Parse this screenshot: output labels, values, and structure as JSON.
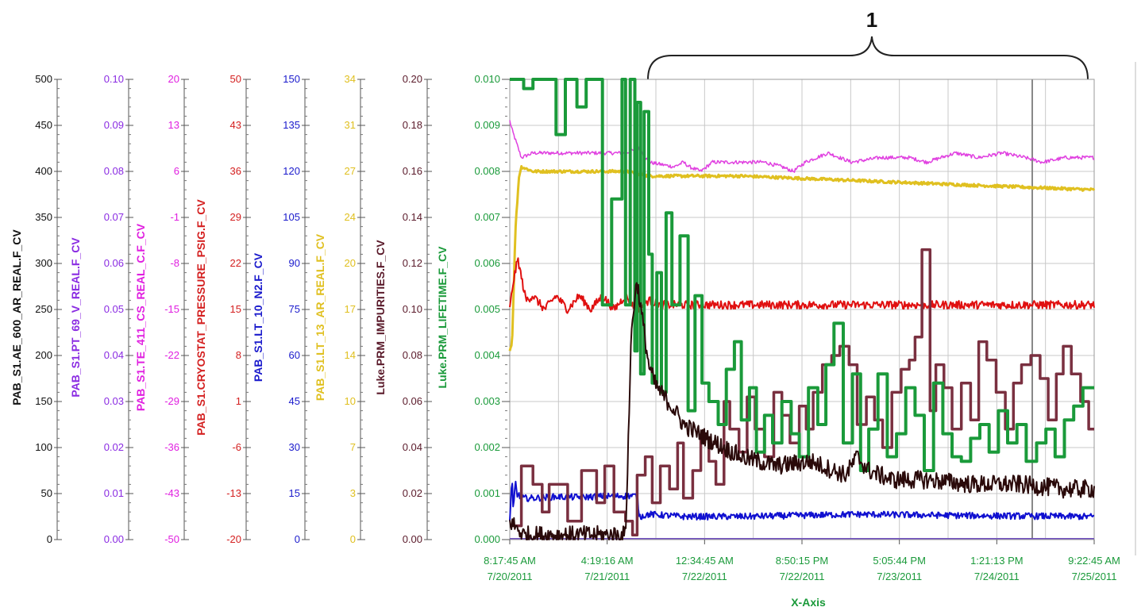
{
  "chart_data": {
    "type": "line",
    "callout_label": "1",
    "xlabel": "X-Axis",
    "x_tick_labels": [
      [
        "8:17:45 AM",
        "7/20/2011"
      ],
      [
        "4:19:16 AM",
        "7/21/2011"
      ],
      [
        "12:34:45 AM",
        "7/22/2011"
      ],
      [
        "8:50:15 PM",
        "7/22/2011"
      ],
      [
        "5:05:44 PM",
        "7/23/2011"
      ],
      [
        "1:21:13 PM",
        "7/24/2011"
      ],
      [
        "9:22:45 AM",
        "7/25/2011"
      ]
    ],
    "x_range_days": [
      0,
      5.0472
    ],
    "grid": true,
    "axes": [
      {
        "title": "PAB_S1.AE_600_AR_REAL.F_CV",
        "color": "#111111",
        "ylim": [
          0,
          500
        ],
        "ticks": [
          "0",
          "50",
          "100",
          "150",
          "200",
          "250",
          "300",
          "350",
          "400",
          "450",
          "500"
        ]
      },
      {
        "title": "PAB_S1.PT_69_V_REAL.F_CV",
        "color": "#8a2be2",
        "ylim": [
          0,
          0.1
        ],
        "ticks": [
          "0.00",
          "0.01",
          "0.02",
          "0.03",
          "0.04",
          "0.05",
          "0.06",
          "0.07",
          "0.08",
          "0.09",
          "0.10"
        ]
      },
      {
        "title": "PAB_S1.TE_411_CS_REAL_C.F_CV",
        "color": "#e020e0",
        "ylim": [
          -50,
          20
        ],
        "ticks": [
          "-50",
          "-43",
          "-36",
          "-29",
          "-22",
          "-15",
          "-8",
          "-1",
          "6",
          "13",
          "20"
        ]
      },
      {
        "title": "PAB_S1.CRYOSTAT_PRESSURE_PSIG.F_CV",
        "color": "#d42020",
        "ylim": [
          -20,
          50
        ],
        "ticks": [
          "-20",
          "-13",
          "-6",
          "1",
          "8",
          "15",
          "22",
          "29",
          "36",
          "43",
          "50"
        ]
      },
      {
        "title": "PAB_S1.LT_10_N2.F_CV",
        "color": "#1a1acc",
        "ylim": [
          0,
          150
        ],
        "ticks": [
          "0",
          "15",
          "30",
          "45",
          "60",
          "75",
          "90",
          "105",
          "120",
          "135",
          "150"
        ]
      },
      {
        "title": "PAB_S1.LT_13_AR_REAL.F_CV",
        "color": "#e0c020",
        "ylim": [
          0,
          34
        ],
        "ticks": [
          "0",
          "3",
          "7",
          "10",
          "14",
          "17",
          "20",
          "24",
          "27",
          "31",
          "34"
        ]
      },
      {
        "title": "Luke.PRM_IMPURITIES.F_CV",
        "color": "#5a1a2a",
        "ylim": [
          0,
          0.2
        ],
        "ticks": [
          "0.00",
          "0.02",
          "0.04",
          "0.06",
          "0.08",
          "0.10",
          "0.12",
          "0.14",
          "0.16",
          "0.18",
          "0.20"
        ]
      },
      {
        "title": "Luke.PRM_LIFETIME.F_CV",
        "color": "#1a9a3a",
        "ylim": [
          0,
          0.01
        ],
        "ticks": [
          "0.000",
          "0.001",
          "0.002",
          "0.003",
          "0.004",
          "0.005",
          "0.006",
          "0.007",
          "0.008",
          "0.009",
          "0.010"
        ]
      }
    ],
    "series": [
      {
        "color": "#e040e0",
        "axis_index": 7,
        "width": 1.5,
        "noise": 4e-05,
        "x": [
          0,
          0.02,
          0.1,
          0.2,
          0.6,
          1.0,
          1.12,
          1.2,
          1.42,
          1.5,
          1.55,
          1.65,
          1.75,
          2.2,
          2.35,
          2.45,
          2.55,
          2.75,
          2.95,
          3.2,
          3.45,
          3.6,
          3.85,
          4.05,
          4.25,
          4.45,
          4.6,
          4.8,
          5.0472
        ],
        "y": [
          0.0091,
          0.0089,
          0.0083,
          0.0084,
          0.0084,
          0.0084,
          0.0085,
          0.0082,
          0.0081,
          0.0082,
          0.0081,
          0.008,
          0.0082,
          0.0082,
          0.0081,
          0.008,
          0.0082,
          0.0084,
          0.0082,
          0.0083,
          0.0083,
          0.0082,
          0.0084,
          0.0083,
          0.0084,
          0.0083,
          0.0082,
          0.0083,
          0.0083
        ]
      },
      {
        "color": "#e0c020",
        "axis_index": 7,
        "width": 3,
        "noise": 3e-05,
        "x": [
          0,
          0.02,
          0.05,
          0.08,
          0.1,
          0.2,
          1.0,
          1.2,
          1.3,
          2.0,
          3.0,
          4.0,
          5.0472
        ],
        "y": [
          0.0041,
          0.0043,
          0.0068,
          0.0079,
          0.0081,
          0.008,
          0.008,
          0.0079,
          0.0079,
          0.0079,
          0.0078,
          0.0077,
          0.0076
        ]
      },
      {
        "color": "#e01010",
        "axis_index": 7,
        "width": 2,
        "noise": 9e-05,
        "x": [
          0,
          0.03,
          0.07,
          0.1,
          0.14,
          0.2,
          0.3,
          0.4,
          0.5,
          0.6,
          0.7,
          0.8,
          0.9,
          1.0,
          1.1,
          1.2,
          1.3,
          2.0,
          3.0,
          4.0,
          5.0472
        ],
        "y": [
          0.005,
          0.0056,
          0.0061,
          0.0057,
          0.0052,
          0.0053,
          0.005,
          0.0053,
          0.005,
          0.0053,
          0.005,
          0.0053,
          0.005,
          0.0053,
          0.005,
          0.0052,
          0.0051,
          0.0051,
          0.0051,
          0.0051,
          0.0051
        ]
      },
      {
        "color": "#1010d0",
        "axis_index": 7,
        "width": 2,
        "noise": 7e-05,
        "x": [
          0,
          0.02,
          0.03,
          0.05,
          0.06,
          0.1,
          0.2,
          0.4,
          0.6,
          0.8,
          1.0,
          1.1,
          1.12,
          1.2,
          1.5,
          2.0,
          3.0,
          4.0,
          5.0472
        ],
        "y": [
          0.0004,
          0.0013,
          0.0006,
          0.0013,
          0.001,
          0.0009,
          0.0009,
          0.00093,
          0.00092,
          0.00094,
          0.00095,
          0.00095,
          0.0005,
          0.00055,
          0.0005,
          0.0005,
          0.00055,
          0.00052,
          0.0005
        ]
      },
      {
        "color": "#7050c0",
        "axis_index": 7,
        "width": 1.5,
        "noise": 0.0,
        "x": [
          0,
          5.0472
        ],
        "y": [
          2e-05,
          2e-05
        ]
      },
      {
        "color": "#7a3040",
        "axis_index": 7,
        "width": 3.5,
        "noise": 0.0,
        "step": true,
        "x": [
          0,
          0.1,
          0.2,
          0.28,
          0.34,
          0.5,
          0.62,
          0.75,
          0.82,
          0.9,
          1.0,
          1.06,
          1.1,
          1.17,
          1.23,
          1.3,
          1.38,
          1.45,
          1.5,
          1.58,
          1.65,
          1.72,
          1.78,
          1.85,
          1.9,
          1.98,
          2.05,
          2.12,
          2.2,
          2.28,
          2.35,
          2.42,
          2.5,
          2.56,
          2.62,
          2.7,
          2.78,
          2.85,
          2.93,
          3.0,
          3.08,
          3.15,
          3.22,
          3.3,
          3.38,
          3.45,
          3.5,
          3.56,
          3.63,
          3.68,
          3.75,
          3.82,
          3.9,
          3.98,
          4.05,
          4.12,
          4.2,
          4.28,
          4.35,
          4.42,
          4.5,
          4.58,
          4.65,
          4.72,
          4.78,
          4.85,
          4.93,
          5.0,
          5.0472
        ],
        "y": [
          0.0003,
          0.0016,
          0.0012,
          0.0006,
          0.0012,
          0.0004,
          0.0015,
          0.0008,
          0.0016,
          0.0006,
          0.0004,
          0.0001,
          0.0014,
          0.0018,
          0.0008,
          0.0016,
          0.0011,
          0.0021,
          0.0009,
          0.0015,
          0.0022,
          0.0017,
          0.0012,
          0.003,
          0.0024,
          0.0019,
          0.0031,
          0.0024,
          0.0018,
          0.0032,
          0.0027,
          0.0021,
          0.0029,
          0.0024,
          0.0032,
          0.0038,
          0.004,
          0.0042,
          0.0038,
          0.0025,
          0.0031,
          0.0026,
          0.002,
          0.0032,
          0.0037,
          0.0039,
          0.0044,
          0.0063,
          0.0028,
          0.0038,
          0.0033,
          0.0024,
          0.0034,
          0.0026,
          0.0043,
          0.0039,
          0.0032,
          0.0024,
          0.0034,
          0.0038,
          0.004,
          0.0035,
          0.0026,
          0.0036,
          0.0042,
          0.0036,
          0.003,
          0.0024,
          0.0024
        ]
      },
      {
        "color": "#1a9a3a",
        "axis_index": 7,
        "width": 4,
        "noise": 0.0,
        "step": true,
        "x": [
          0,
          0.12,
          0.2,
          0.4,
          0.48,
          0.58,
          0.66,
          0.8,
          0.88,
          0.97,
          1.0,
          1.04,
          1.08,
          1.1,
          1.13,
          1.16,
          1.2,
          1.23,
          1.27,
          1.31,
          1.35,
          1.4,
          1.47,
          1.54,
          1.6,
          1.66,
          1.72,
          1.8,
          1.87,
          1.94,
          2.0,
          2.07,
          2.13,
          2.2,
          2.27,
          2.35,
          2.43,
          2.5,
          2.58,
          2.66,
          2.73,
          2.8,
          2.88,
          2.96,
          3.03,
          3.1,
          3.18,
          3.26,
          3.34,
          3.42,
          3.5,
          3.58,
          3.66,
          3.74,
          3.82,
          3.9,
          3.98,
          4.06,
          4.14,
          4.22,
          4.3,
          4.38,
          4.46,
          4.55,
          4.63,
          4.71,
          4.79,
          4.87,
          4.95,
          5.0472
        ],
        "y": [
          0.01,
          0.0098,
          0.01,
          0.0088,
          0.01,
          0.0094,
          0.01,
          0.0051,
          0.0074,
          0.01,
          0.0051,
          0.01,
          0.0041,
          0.0095,
          0.0036,
          0.0093,
          0.0062,
          0.0034,
          0.0058,
          0.0032,
          0.0071,
          0.0051,
          0.0066,
          0.0028,
          0.0053,
          0.0034,
          0.003,
          0.0025,
          0.0037,
          0.0043,
          0.0026,
          0.0033,
          0.0019,
          0.0027,
          0.0021,
          0.003,
          0.0023,
          0.0018,
          0.0033,
          0.0025,
          0.0038,
          0.0047,
          0.0021,
          0.0036,
          0.0015,
          0.0024,
          0.0036,
          0.0018,
          0.0023,
          0.0033,
          0.0027,
          0.0015,
          0.0034,
          0.0023,
          0.0018,
          0.0017,
          0.0022,
          0.0025,
          0.0019,
          0.0028,
          0.0021,
          0.0025,
          0.0017,
          0.0021,
          0.0024,
          0.0018,
          0.0026,
          0.0029,
          0.0033,
          0.0033
        ]
      },
      {
        "color": "#2a0a0a",
        "axis_index": 7,
        "width": 2,
        "noise": 0.0002,
        "x": [
          0,
          0.04,
          0.08,
          0.12,
          0.2,
          0.5,
          0.8,
          1.0,
          1.05,
          1.08,
          1.1,
          1.15,
          1.2,
          1.25,
          1.3,
          1.4,
          1.5,
          1.7,
          2.0,
          2.3,
          2.6,
          2.9,
          3.0,
          3.1,
          3.3,
          3.6,
          4.0,
          4.4,
          4.8,
          5.0472
        ],
        "y": [
          0.0004,
          0.0003,
          0.0002,
          0.0001,
          0.0001,
          0.0001,
          0.0001,
          0.0001,
          0.0045,
          0.0053,
          0.0056,
          0.0047,
          0.0038,
          0.0034,
          0.0032,
          0.0029,
          0.0025,
          0.0022,
          0.0018,
          0.0016,
          0.0017,
          0.0014,
          0.0018,
          0.0015,
          0.0013,
          0.0013,
          0.0012,
          0.0012,
          0.0011,
          0.0011
        ]
      }
    ]
  }
}
